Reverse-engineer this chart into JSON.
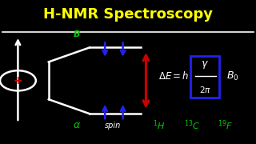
{
  "bg_color": "#000000",
  "title": "H-NMR Spectroscopy",
  "title_color": "#FFFF00",
  "title_fontsize": 13,
  "separator_color": "#FFFFFF",
  "beta_label": "B",
  "beta_color": "#00CC00",
  "alpha_label": "α",
  "alpha_color": "#00CC00",
  "spin_label": "spin",
  "spin_color": "#FFFFFF",
  "arrow_up_color": "#2222EE",
  "arrow_down_color": "#2222EE",
  "energy_arrow_color": "#CC0000",
  "equation_color": "#FFFFFF",
  "box_color": "#2222EE",
  "isotope_color": "#00CC00",
  "line_color": "#FFFFFF",
  "plus_color": "#CC0000",
  "fig_width": 3.2,
  "fig_height": 1.8,
  "dpi": 100
}
